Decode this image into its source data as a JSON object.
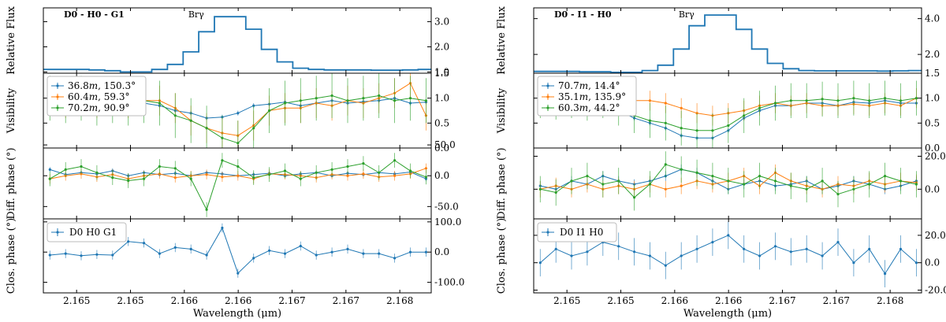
{
  "chart_data": [
    {
      "panel_id": "left",
      "type": "multi-panel-line",
      "xlabel": "Wavelength (μm)",
      "x_ticks": [
        "2.165",
        "2.165",
        "2.166",
        "2.166",
        "2.167",
        "2.167",
        "2.168"
      ],
      "x": [
        2.165,
        2.16512,
        2.16524,
        2.16536,
        2.16548,
        2.1656,
        2.16572,
        2.16584,
        2.16596,
        2.16608,
        2.1662,
        2.16632,
        2.16644,
        2.16656,
        2.16668,
        2.1668,
        2.16692,
        2.16704,
        2.16716,
        2.16728,
        2.1674,
        2.16752,
        2.16764,
        2.16776,
        2.16788
      ],
      "xlim": [
        2.16495,
        2.16792
      ],
      "flux": {
        "ylabel": "Relative Flux",
        "y_ticks": [
          "1.0",
          "2.0",
          "3.0"
        ],
        "ylim": [
          0.95,
          3.55
        ],
        "label_left": "D0 - H0 - G1",
        "line_label": "Brγ",
        "values": [
          1.1,
          1.1,
          1.1,
          1.08,
          1.05,
          1.0,
          1.0,
          1.1,
          1.3,
          1.8,
          2.6,
          3.2,
          3.2,
          2.7,
          1.9,
          1.4,
          1.15,
          1.1,
          1.08,
          1.08,
          1.08,
          1.07,
          1.07,
          1.08,
          1.1
        ]
      },
      "visibility": {
        "ylabel": "Visibility",
        "y_ticks": [
          "0.0",
          "0.5",
          "1.0",
          "1.5"
        ],
        "ylim": [
          0,
          1.5
        ],
        "series": [
          {
            "name": "36.8m, 150.3°",
            "label_value": "36.8",
            "label_angle": "150.3°",
            "color": "#1f77b4",
            "values": [
              0.95,
              0.85,
              0.9,
              0.88,
              0.92,
              0.8,
              0.9,
              0.85,
              0.75,
              0.7,
              0.6,
              0.62,
              0.7,
              0.85,
              0.88,
              0.92,
              0.85,
              0.9,
              0.95,
              0.9,
              0.93,
              0.95,
              1.0,
              0.9,
              0.92
            ],
            "err": [
              0.05,
              0.05,
              0.05,
              0.05,
              0.05,
              0.05,
              0.05,
              0.05,
              0.05,
              0.05,
              0.05,
              0.05,
              0.05,
              0.05,
              0.05,
              0.05,
              0.05,
              0.05,
              0.05,
              0.05,
              0.05,
              0.05,
              0.05,
              0.05,
              0.05
            ]
          },
          {
            "name": "60.4m, 59.3°",
            "label_value": "60.4",
            "label_angle": "59.3°",
            "color": "#ff7f0e",
            "values": [
              1.0,
              0.9,
              1.05,
              0.9,
              0.95,
              0.9,
              0.95,
              0.95,
              0.8,
              0.55,
              0.4,
              0.3,
              0.25,
              0.45,
              0.75,
              0.8,
              0.8,
              0.9,
              0.85,
              0.95,
              0.9,
              1.0,
              1.1,
              1.3,
              0.65
            ],
            "err": [
              0.3,
              0.3,
              0.3,
              0.3,
              0.3,
              0.3,
              0.3,
              0.3,
              0.3,
              0.3,
              0.3,
              0.3,
              0.3,
              0.3,
              0.3,
              0.3,
              0.3,
              0.3,
              0.3,
              0.3,
              0.3,
              0.3,
              0.3,
              0.3,
              0.3
            ]
          },
          {
            "name": "70.2m, 90.9°",
            "label_value": "70.2",
            "label_angle": "90.9°",
            "color": "#2ca02c",
            "values": [
              1.0,
              0.95,
              1.0,
              0.9,
              0.95,
              0.9,
              0.95,
              0.9,
              0.65,
              0.55,
              0.4,
              0.2,
              0.1,
              0.4,
              0.75,
              0.9,
              0.95,
              1.0,
              1.05,
              0.95,
              1.0,
              1.05,
              0.95,
              1.0,
              0.95
            ],
            "err": [
              0.45,
              0.45,
              0.45,
              0.45,
              0.45,
              0.45,
              0.45,
              0.45,
              0.45,
              0.45,
              0.45,
              0.45,
              0.45,
              0.45,
              0.45,
              0.45,
              0.45,
              0.45,
              0.45,
              0.45,
              0.45,
              0.45,
              0.45,
              0.45,
              0.45
            ]
          }
        ]
      },
      "diffphase": {
        "ylabel": "Diff. phase (°)",
        "y_ticks": [
          "-50.0",
          "0.0",
          "50.0"
        ],
        "ylim": [
          -70,
          45
        ],
        "series": [
          {
            "name": "36.8m, 150.3°",
            "color": "#1f77b4",
            "values": [
              10,
              2,
              5,
              3,
              8,
              0,
              5,
              2,
              4,
              0,
              5,
              3,
              0,
              2,
              4,
              0,
              3,
              5,
              0,
              4,
              2,
              5,
              3,
              6,
              -5
            ],
            "err": [
              4,
              4,
              4,
              4,
              4,
              4,
              4,
              4,
              4,
              4,
              4,
              4,
              4,
              4,
              4,
              4,
              4,
              4,
              4,
              4,
              4,
              4,
              4,
              4,
              4
            ]
          },
          {
            "name": "60.4m, 59.3°",
            "color": "#ff7f0e",
            "values": [
              -5,
              0,
              3,
              -2,
              2,
              -5,
              0,
              3,
              -3,
              0,
              2,
              -2,
              0,
              -5,
              3,
              2,
              0,
              -3,
              2,
              0,
              3,
              -2,
              0,
              3,
              12
            ],
            "err": [
              8,
              8,
              8,
              8,
              8,
              8,
              8,
              8,
              8,
              8,
              8,
              8,
              8,
              8,
              8,
              8,
              8,
              8,
              8,
              8,
              8,
              8,
              8,
              8,
              8
            ]
          },
          {
            "name": "70.2m, 90.9°",
            "color": "#2ca02c",
            "values": [
              -5,
              10,
              15,
              5,
              -3,
              -8,
              -5,
              15,
              12,
              -5,
              -55,
              25,
              15,
              -3,
              2,
              8,
              -5,
              5,
              10,
              15,
              20,
              5,
              25,
              8,
              -2
            ],
            "err": [
              12,
              12,
              12,
              12,
              12,
              12,
              12,
              12,
              12,
              12,
              12,
              12,
              12,
              12,
              12,
              12,
              12,
              12,
              12,
              12,
              12,
              12,
              12,
              12,
              12
            ]
          }
        ]
      },
      "closure": {
        "ylabel": "Clos. phase (°)",
        "y_ticks": [
          "-100.0",
          "0.0",
          "100.0"
        ],
        "ylim": [
          -135,
          110
        ],
        "legend": "D0 H0 G1",
        "series": [
          {
            "name": "D0 H0 G1",
            "color": "#1f77b4",
            "values": [
              -10,
              -5,
              -12,
              -8,
              -10,
              35,
              30,
              -5,
              15,
              10,
              -10,
              80,
              -70,
              -20,
              5,
              -5,
              20,
              -10,
              0,
              10,
              -5,
              -5,
              -20,
              0,
              0
            ],
            "err": [
              15,
              15,
              15,
              15,
              15,
              15,
              15,
              15,
              15,
              15,
              15,
              15,
              15,
              15,
              15,
              15,
              15,
              15,
              15,
              15,
              15,
              15,
              15,
              15,
              15
            ]
          }
        ]
      }
    },
    {
      "panel_id": "right",
      "type": "multi-panel-line",
      "xlabel": "Wavelength (μm)",
      "x_ticks": [
        "2.165",
        "2.165",
        "2.166",
        "2.166",
        "2.167",
        "2.167",
        "2.168"
      ],
      "x": [
        2.165,
        2.16512,
        2.16524,
        2.16536,
        2.16548,
        2.1656,
        2.16572,
        2.16584,
        2.16596,
        2.16608,
        2.1662,
        2.16632,
        2.16644,
        2.16656,
        2.16668,
        2.1668,
        2.16692,
        2.16704,
        2.16716,
        2.16728,
        2.1674,
        2.16752,
        2.16764,
        2.16776,
        2.16788
      ],
      "xlim": [
        2.16495,
        2.16792
      ],
      "flux": {
        "ylabel": "Relative Flux",
        "y_ticks": [
          "2.0",
          "4.0"
        ],
        "ylim": [
          0.95,
          4.6
        ],
        "label_left": "D0 - I1 - H0",
        "line_label": "Brγ",
        "values": [
          1.05,
          1.05,
          1.05,
          1.03,
          1.03,
          1.0,
          1.0,
          1.1,
          1.4,
          2.3,
          3.6,
          4.2,
          4.2,
          3.4,
          2.3,
          1.5,
          1.2,
          1.1,
          1.08,
          1.08,
          1.08,
          1.08,
          1.07,
          1.08,
          1.1
        ]
      },
      "visibility": {
        "ylabel": "Visibility",
        "y_ticks": [
          "0.0",
          "0.5",
          "1.0",
          "1.5"
        ],
        "ylim": [
          0,
          1.5
        ],
        "series": [
          {
            "name": "70.7m, 14.4°",
            "label_value": "70.7",
            "label_angle": "14.4°",
            "color": "#1f77b4",
            "values": [
              0.95,
              0.9,
              0.92,
              0.85,
              0.9,
              0.75,
              0.6,
              0.5,
              0.4,
              0.25,
              0.2,
              0.2,
              0.35,
              0.6,
              0.75,
              0.85,
              0.85,
              0.9,
              0.9,
              0.85,
              0.92,
              0.9,
              0.95,
              0.9,
              0.9
            ],
            "err": [
              0.05,
              0.05,
              0.05,
              0.05,
              0.05,
              0.05,
              0.05,
              0.05,
              0.05,
              0.05,
              0.05,
              0.05,
              0.05,
              0.05,
              0.05,
              0.05,
              0.05,
              0.05,
              0.05,
              0.05,
              0.05,
              0.05,
              0.05,
              0.05,
              0.05
            ]
          },
          {
            "name": "35.1m, 135.9°",
            "label_value": "35.1",
            "label_angle": "135.9°",
            "color": "#ff7f0e",
            "values": [
              1.0,
              0.95,
              0.98,
              0.95,
              0.95,
              0.9,
              0.95,
              0.95,
              0.9,
              0.8,
              0.7,
              0.65,
              0.7,
              0.75,
              0.85,
              0.9,
              0.85,
              0.9,
              0.85,
              0.85,
              0.88,
              0.85,
              0.9,
              0.85,
              1.0
            ],
            "err": [
              0.2,
              0.2,
              0.2,
              0.2,
              0.2,
              0.2,
              0.2,
              0.2,
              0.2,
              0.2,
              0.2,
              0.2,
              0.2,
              0.2,
              0.2,
              0.2,
              0.2,
              0.2,
              0.2,
              0.2,
              0.2,
              0.2,
              0.2,
              0.2,
              0.2
            ]
          },
          {
            "name": "60.3m, 44.2°",
            "label_value": "60.3",
            "label_angle": "44.2°",
            "color": "#2ca02c",
            "values": [
              0.95,
              0.92,
              0.95,
              0.9,
              0.95,
              0.8,
              0.65,
              0.55,
              0.5,
              0.4,
              0.35,
              0.35,
              0.45,
              0.65,
              0.8,
              0.9,
              0.95,
              0.95,
              0.98,
              0.95,
              1.0,
              0.95,
              1.0,
              0.95,
              1.0
            ],
            "err": [
              0.35,
              0.35,
              0.35,
              0.35,
              0.35,
              0.35,
              0.35,
              0.35,
              0.35,
              0.35,
              0.35,
              0.35,
              0.35,
              0.35,
              0.35,
              0.35,
              0.35,
              0.35,
              0.35,
              0.35,
              0.35,
              0.35,
              0.35,
              0.35,
              0.35
            ]
          }
        ]
      },
      "diffphase": {
        "ylabel": "Diff. phase (°)",
        "y_ticks": [
          "0.0",
          "20.0"
        ],
        "ylim": [
          -18,
          25
        ],
        "series": [
          {
            "name": "70.7m, 14.4°",
            "color": "#1f77b4",
            "values": [
              2,
              0,
              5,
              3,
              8,
              5,
              3,
              5,
              8,
              12,
              10,
              5,
              0,
              3,
              5,
              2,
              3,
              5,
              0,
              2,
              5,
              3,
              0,
              2,
              5
            ],
            "err": [
              3,
              3,
              3,
              3,
              3,
              3,
              3,
              3,
              3,
              3,
              3,
              3,
              3,
              3,
              3,
              3,
              3,
              3,
              3,
              3,
              3,
              3,
              3,
              3,
              3
            ]
          },
          {
            "name": "35.1m, 135.9°",
            "color": "#ff7f0e",
            "values": [
              0,
              2,
              0,
              3,
              0,
              2,
              0,
              3,
              0,
              2,
              5,
              3,
              5,
              8,
              2,
              10,
              5,
              2,
              0,
              3,
              2,
              5,
              3,
              5,
              4
            ],
            "err": [
              5,
              5,
              5,
              5,
              5,
              5,
              5,
              5,
              5,
              5,
              5,
              5,
              5,
              5,
              5,
              5,
              5,
              5,
              5,
              5,
              5,
              5,
              5,
              5,
              5
            ]
          },
          {
            "name": "60.3m, 44.2°",
            "color": "#2ca02c",
            "values": [
              0,
              -2,
              5,
              8,
              3,
              5,
              -5,
              3,
              15,
              12,
              10,
              8,
              5,
              3,
              8,
              5,
              2,
              0,
              5,
              -3,
              0,
              3,
              8,
              5,
              3
            ],
            "err": [
              8,
              8,
              8,
              8,
              8,
              8,
              8,
              8,
              8,
              8,
              8,
              8,
              8,
              8,
              8,
              8,
              8,
              8,
              8,
              8,
              8,
              8,
              8,
              8,
              8
            ]
          }
        ]
      },
      "closure": {
        "ylabel": "Clos. phase (°)",
        "y_ticks": [
          "-20.0",
          "0.0",
          "20.0"
        ],
        "ylim": [
          -22,
          32
        ],
        "legend": "D0 I1 H0",
        "series": [
          {
            "name": "D0 I1 H0",
            "color": "#1f77b4",
            "values": [
              0,
              10,
              5,
              8,
              15,
              12,
              8,
              5,
              -2,
              5,
              10,
              15,
              20,
              10,
              5,
              12,
              8,
              10,
              5,
              15,
              0,
              10,
              -8,
              10,
              0
            ],
            "err": [
              10,
              10,
              10,
              10,
              10,
              10,
              10,
              10,
              10,
              10,
              10,
              10,
              10,
              10,
              10,
              10,
              10,
              10,
              10,
              10,
              10,
              10,
              10,
              10,
              10
            ]
          }
        ]
      }
    }
  ]
}
